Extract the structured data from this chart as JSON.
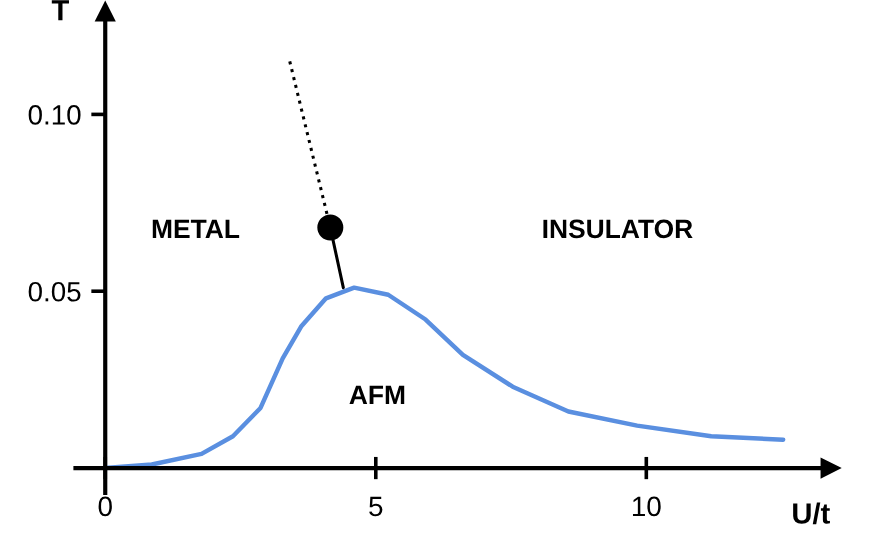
{
  "chart_data": {
    "type": "line",
    "xlabel": "U/t",
    "ylabel": "T",
    "xlim": [
      -0.55,
      13.4
    ],
    "ylim": [
      -0.007,
      0.129
    ],
    "xticks": [
      0,
      5,
      10
    ],
    "yticks": [
      {
        "value": 0.05,
        "label": "0.05"
      },
      {
        "value": 0.1,
        "label": "0.10"
      }
    ],
    "grid": false,
    "legend": false,
    "series": [
      {
        "color": "#5a8fe0",
        "line_style": "solid",
        "marker": "none",
        "x": [
          0,
          0.86,
          1.78,
          2.36,
          2.87,
          3.28,
          3.62,
          4.08,
          4.6,
          5.23,
          5.92,
          6.61,
          7.53,
          8.56,
          9.83,
          11.2,
          12.53
        ],
        "values": [
          0,
          0.001,
          0.004,
          0.009,
          0.017,
          0.031,
          0.04,
          0.048,
          0.051,
          0.049,
          0.042,
          0.032,
          0.023,
          0.016,
          0.012,
          0.009,
          0.008
        ]
      },
      {
        "color": "#000000",
        "line_style": "dotted",
        "marker": "none",
        "x": [
          3.41,
          4.16
        ],
        "values": [
          0.115,
          0.068
        ]
      },
      {
        "color": "#000000",
        "line_style": "solid",
        "marker": "none",
        "x": [
          4.16,
          4.4
        ],
        "values": [
          0.068,
          0.051
        ]
      },
      {
        "type": "scatter",
        "color": "#000000",
        "marker": "circle",
        "x": [
          4.16
        ],
        "values": [
          0.068
        ]
      }
    ],
    "annotations": [
      "METAL",
      "INSULATOR",
      "AFM"
    ]
  }
}
